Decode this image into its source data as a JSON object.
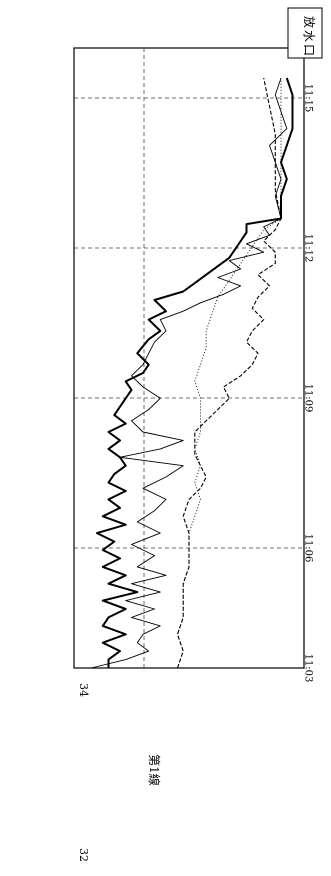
{
  "chart_data": {
    "type": "line",
    "orientation": "rotated-90-clockwise",
    "title": "",
    "xlabel": "",
    "ylabel": "",
    "x_ticks": [
      "11:03",
      "11:06",
      "11:09",
      "11:12",
      "11:15"
    ],
    "y_ticks": [
      "32",
      "34"
    ],
    "ylim": [
      32,
      36
    ],
    "grid": true,
    "legend": {
      "position": "top-right",
      "text": "放水口"
    },
    "side_label": "第1線",
    "series": [
      {
        "style": "thick-solid",
        "points": [
          [
            0,
            32.6
          ],
          [
            0.15,
            32.6
          ],
          [
            0.3,
            32.8
          ],
          [
            0.45,
            32.5
          ],
          [
            0.6,
            32.9
          ],
          [
            0.75,
            32.5
          ],
          [
            0.9,
            32.6
          ],
          [
            1.05,
            32.9
          ],
          [
            1.2,
            32.5
          ],
          [
            1.35,
            33.1
          ],
          [
            1.5,
            32.6
          ],
          [
            1.65,
            32.9
          ],
          [
            1.8,
            32.5
          ],
          [
            1.95,
            32.8
          ],
          [
            2.1,
            32.5
          ],
          [
            2.25,
            32.7
          ],
          [
            2.4,
            32.4
          ],
          [
            2.55,
            32.9
          ],
          [
            2.7,
            32.5
          ],
          [
            2.85,
            32.8
          ],
          [
            3.0,
            32.6
          ],
          [
            3.15,
            32.9
          ],
          [
            3.3,
            32.6
          ],
          [
            3.45,
            32.7
          ],
          [
            3.6,
            32.9
          ],
          [
            3.75,
            32.8
          ],
          [
            3.9,
            32.6
          ],
          [
            4.05,
            32.8
          ],
          [
            4.2,
            32.6
          ],
          [
            4.35,
            32.9
          ],
          [
            4.5,
            32.7
          ],
          [
            4.65,
            32.8
          ],
          [
            4.8,
            32.9
          ],
          [
            4.95,
            33.0
          ],
          [
            5.1,
            32.9
          ],
          [
            5.25,
            33.2
          ],
          [
            5.4,
            33.3
          ],
          [
            5.6,
            33.1
          ],
          [
            5.85,
            33.3
          ],
          [
            6.0,
            33.5
          ],
          [
            6.2,
            33.3
          ],
          [
            6.35,
            33.6
          ],
          [
            6.55,
            33.4
          ],
          [
            6.7,
            33.9
          ],
          [
            6.85,
            34.1
          ],
          [
            7.0,
            34.3
          ],
          [
            7.15,
            34.5
          ],
          [
            7.3,
            34.7
          ],
          [
            7.45,
            34.8
          ],
          [
            7.6,
            34.9
          ],
          [
            7.75,
            35.0
          ],
          [
            7.9,
            35.0
          ],
          [
            8.0,
            35.6
          ],
          [
            8.4,
            35.6
          ],
          [
            8.7,
            35.7
          ],
          [
            9.0,
            35.6
          ],
          [
            9.3,
            35.7
          ],
          [
            9.6,
            35.8
          ],
          [
            9.9,
            35.8
          ],
          [
            10.2,
            35.8
          ],
          [
            10.5,
            35.7
          ]
        ]
      },
      {
        "style": "thin-solid",
        "points": [
          [
            0,
            32.3
          ],
          [
            0.15,
            32.9
          ],
          [
            0.3,
            33.3
          ],
          [
            0.45,
            33.1
          ],
          [
            0.6,
            33.2
          ],
          [
            0.75,
            33.5
          ],
          [
            0.9,
            33.0
          ],
          [
            1.05,
            33.4
          ],
          [
            1.2,
            32.9
          ],
          [
            1.35,
            33.5
          ],
          [
            1.5,
            33.0
          ],
          [
            1.65,
            33.6
          ],
          [
            1.8,
            33.1
          ],
          [
            2.0,
            33.4
          ],
          [
            2.2,
            33.0
          ],
          [
            2.4,
            33.5
          ],
          [
            2.6,
            33.1
          ],
          [
            2.8,
            33.4
          ],
          [
            3.0,
            33.6
          ],
          [
            3.2,
            33.2
          ],
          [
            3.4,
            33.6
          ],
          [
            3.6,
            33.9
          ],
          [
            3.75,
            32.8
          ],
          [
            3.9,
            33.5
          ],
          [
            4.05,
            33.9
          ],
          [
            4.2,
            33.2
          ],
          [
            4.4,
            33.0
          ],
          [
            4.6,
            33.3
          ],
          [
            4.8,
            33.5
          ],
          [
            5.0,
            33.2
          ],
          [
            5.2,
            33.0
          ],
          [
            5.4,
            33.2
          ],
          [
            5.6,
            33.3
          ],
          [
            5.8,
            33.4
          ],
          [
            6.0,
            33.6
          ],
          [
            6.2,
            33.5
          ],
          [
            6.35,
            33.9
          ],
          [
            6.5,
            34.2
          ],
          [
            6.65,
            34.6
          ],
          [
            6.8,
            34.9
          ],
          [
            6.95,
            34.5
          ],
          [
            7.1,
            34.9
          ],
          [
            7.25,
            34.7
          ],
          [
            7.4,
            35.3
          ],
          [
            7.55,
            35.0
          ],
          [
            7.7,
            35.4
          ],
          [
            7.85,
            35.3
          ],
          [
            8.0,
            35.6
          ],
          [
            8.4,
            35.5
          ],
          [
            8.7,
            35.6
          ],
          [
            9.0,
            35.5
          ],
          [
            9.3,
            35.4
          ],
          [
            9.6,
            35.7
          ],
          [
            9.9,
            35.6
          ],
          [
            10.2,
            35.5
          ],
          [
            10.5,
            35.6
          ]
        ]
      },
      {
        "style": "dashed",
        "points": [
          [
            0,
            33.8
          ],
          [
            0.3,
            33.9
          ],
          [
            0.6,
            33.8
          ],
          [
            0.9,
            33.9
          ],
          [
            1.2,
            33.9
          ],
          [
            1.5,
            33.9
          ],
          [
            1.8,
            34.0
          ],
          [
            2.1,
            34.0
          ],
          [
            2.4,
            34.0
          ],
          [
            2.7,
            33.9
          ],
          [
            3.0,
            34.0
          ],
          [
            3.2,
            34.2
          ],
          [
            3.4,
            34.3
          ],
          [
            3.6,
            34.2
          ],
          [
            3.8,
            34.1
          ],
          [
            4.0,
            34.1
          ],
          [
            4.2,
            34.1
          ],
          [
            4.4,
            34.3
          ],
          [
            4.6,
            34.5
          ],
          [
            4.8,
            34.7
          ],
          [
            5.0,
            34.6
          ],
          [
            5.2,
            34.9
          ],
          [
            5.4,
            35.1
          ],
          [
            5.6,
            35.2
          ],
          [
            5.8,
            35.0
          ],
          [
            6.0,
            35.1
          ],
          [
            6.2,
            35.3
          ],
          [
            6.4,
            35.1
          ],
          [
            6.6,
            35.2
          ],
          [
            6.8,
            35.4
          ],
          [
            7.0,
            35.2
          ],
          [
            7.2,
            35.5
          ],
          [
            7.4,
            35.5
          ],
          [
            7.6,
            35.3
          ],
          [
            7.8,
            35.5
          ],
          [
            8.0,
            35.6
          ],
          [
            8.5,
            35.5
          ],
          [
            9.0,
            35.5
          ],
          [
            9.5,
            35.5
          ],
          [
            10.0,
            35.4
          ],
          [
            10.5,
            35.3
          ]
        ]
      },
      {
        "style": "dotted",
        "points": [
          [
            0,
            33.8
          ],
          [
            0.3,
            33.9
          ],
          [
            0.6,
            33.8
          ],
          [
            0.9,
            33.9
          ],
          [
            1.2,
            33.9
          ],
          [
            1.5,
            33.9
          ],
          [
            1.8,
            34.0
          ],
          [
            2.1,
            34.0
          ],
          [
            2.4,
            34.0
          ],
          [
            2.7,
            34.1
          ],
          [
            3.0,
            34.2
          ],
          [
            3.3,
            34.1
          ],
          [
            3.6,
            34.2
          ],
          [
            3.9,
            34.1
          ],
          [
            4.2,
            34.2
          ],
          [
            4.5,
            34.2
          ],
          [
            4.8,
            34.2
          ],
          [
            5.1,
            34.1
          ],
          [
            5.4,
            34.2
          ],
          [
            5.7,
            34.3
          ],
          [
            6.0,
            34.3
          ],
          [
            6.3,
            34.4
          ],
          [
            6.6,
            34.5
          ],
          [
            6.9,
            34.7
          ],
          [
            7.2,
            34.9
          ],
          [
            7.5,
            35.1
          ],
          [
            7.8,
            35.3
          ],
          [
            8.0,
            35.6
          ],
          [
            8.5,
            35.6
          ],
          [
            9.0,
            35.6
          ],
          [
            9.5,
            35.6
          ],
          [
            10.0,
            35.6
          ],
          [
            10.5,
            35.6
          ]
        ]
      }
    ]
  }
}
